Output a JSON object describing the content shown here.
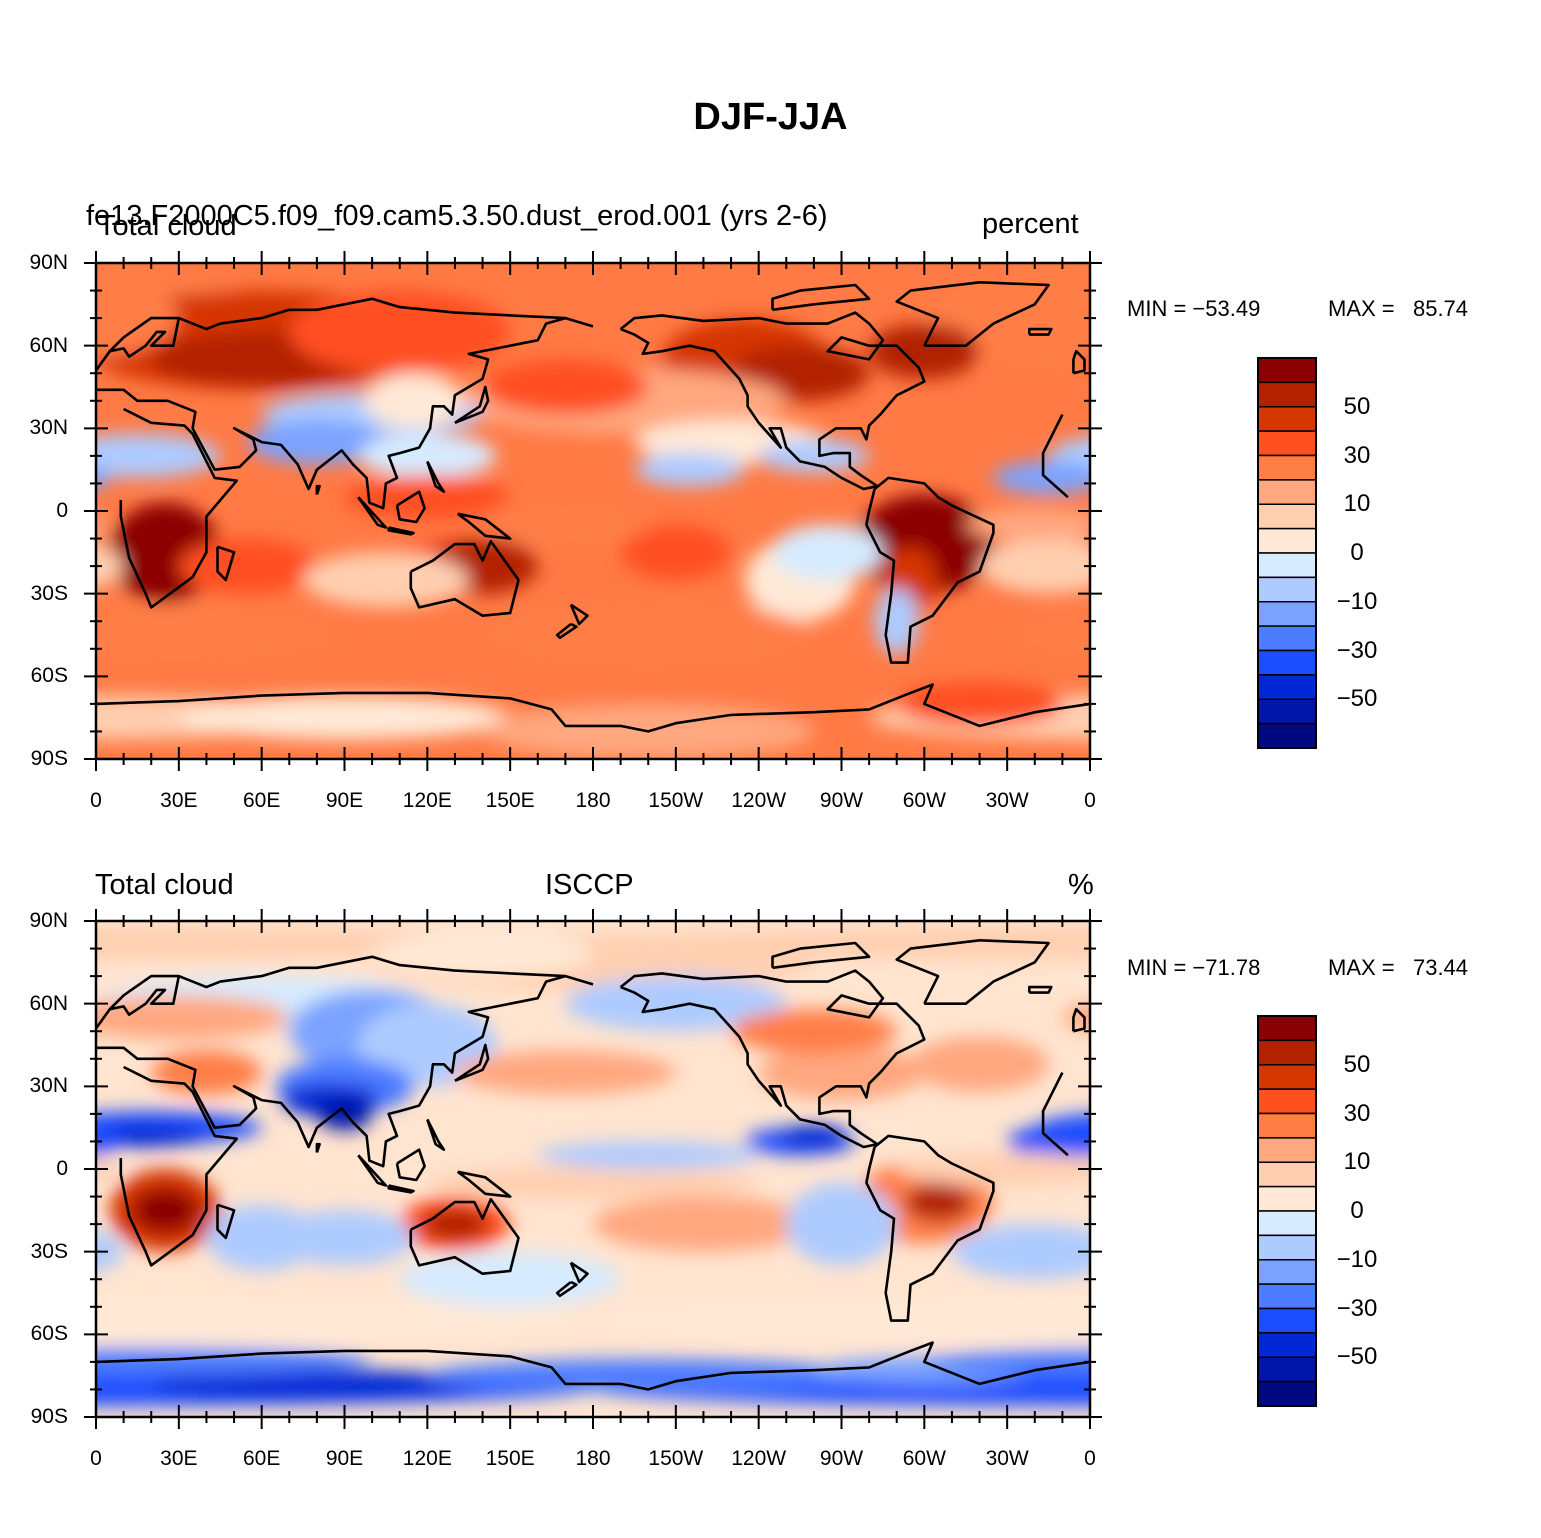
{
  "main_title": "DJF-JJA",
  "map_type": "global-cylindrical-equidistant",
  "panels": [
    {
      "name": "model",
      "left_title": "Total cloud",
      "overlay_title": "fe13.F2000C5.f09_f09.cam5.3.50.dust_erod.001 (yrs 2-6)",
      "right_title": "percent",
      "min_label": "MIN = −53.49",
      "max_label": "MAX =   85.74",
      "min": -53.49,
      "max": 85.74
    },
    {
      "name": "obs",
      "left_title": "Total cloud",
      "center_title": "ISCCP",
      "right_title": "%",
      "min_label": "MIN = −71.78",
      "max_label": "MAX =   73.44",
      "min": -71.78,
      "max": 73.44
    }
  ],
  "lat_labels": [
    "90N",
    "60N",
    "30N",
    "0",
    "30S",
    "60S",
    "90S"
  ],
  "lon_labels": [
    "0",
    "30E",
    "60E",
    "90E",
    "120E",
    "150E",
    "180",
    "150W",
    "120W",
    "90W",
    "60W",
    "30W",
    "0"
  ],
  "colorbar": {
    "labels": [
      "50",
      "30",
      "10",
      "0",
      "−10",
      "−30",
      "−50"
    ],
    "colors": [
      "#8b0000",
      "#b22200",
      "#d63600",
      "#ff5020",
      "#ff7e46",
      "#ffa77f",
      "#ffcfb0",
      "#ffe9d6",
      "#d6ebff",
      "#adcbff",
      "#7aa3ff",
      "#4c7cff",
      "#1c4dff",
      "#0028d4",
      "#0016a8",
      "#000a80"
    ]
  },
  "colors": {
    "model_background": "#ff7a45",
    "obs_background": "#ffe4cf"
  }
}
